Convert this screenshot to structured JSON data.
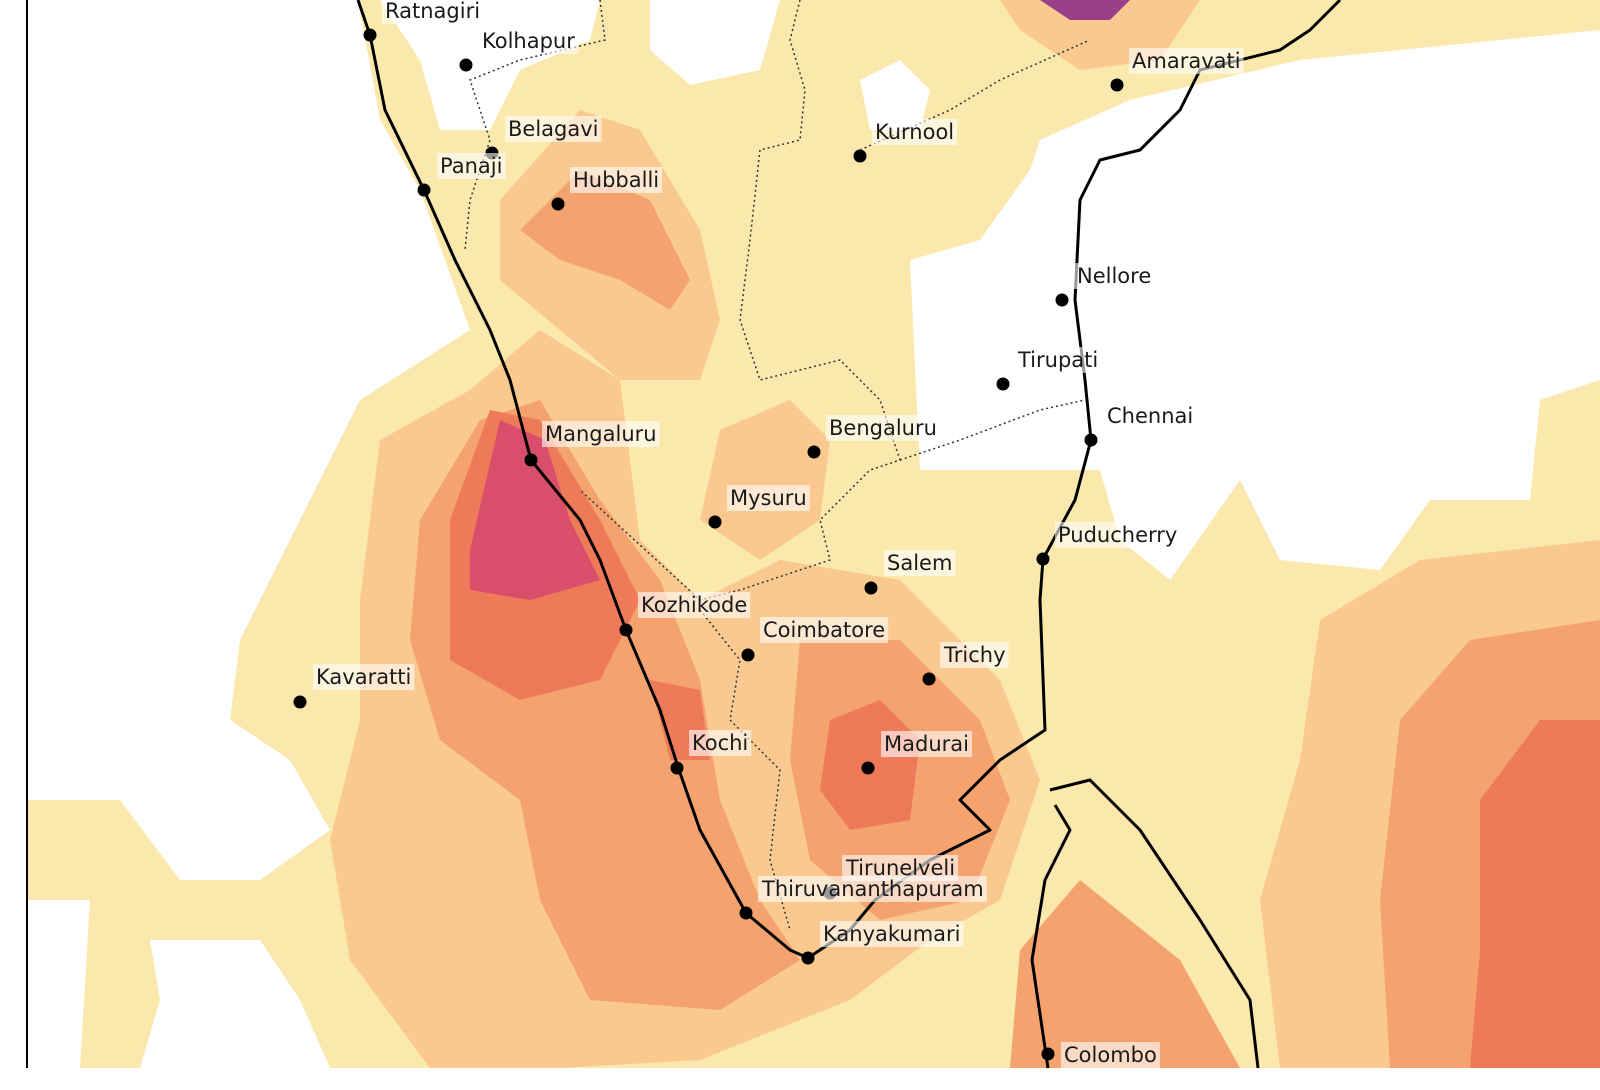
{
  "cities": [
    "Ratnagiri",
    "Kolhapur",
    "Belagavi",
    "Panaji",
    "Hubballi",
    "Kurnool",
    "Amaravati",
    "Nellore",
    "Tirupati",
    "Chennai",
    "Bengaluru",
    "Mangaluru",
    "Mysuru",
    "Puducherry",
    "Salem",
    "Kozhikode",
    "Coimbatore",
    "Trichy",
    "Kavaratti",
    "Kochi",
    "Madurai",
    "Tirunelveli",
    "Thiruvananthapuram",
    "Kanyakumari",
    "Colombo"
  ]
}
